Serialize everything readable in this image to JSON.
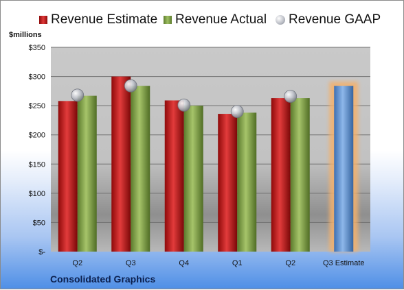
{
  "legend": {
    "estimate": "Revenue Estimate",
    "actual": "Revenue Actual",
    "gaap": "Revenue GAAP"
  },
  "y_unit": "$millions",
  "footer_title": "Consolidated Graphics",
  "chart_data": {
    "type": "bar",
    "categories": [
      "Q2",
      "Q3",
      "Q4",
      "Q1",
      "Q2",
      "Q3 Estimate"
    ],
    "series": [
      {
        "name": "Revenue Estimate",
        "values": [
          258,
          300,
          259,
          236,
          263,
          null
        ],
        "color": "#c41a1a"
      },
      {
        "name": "Revenue Actual",
        "values": [
          267,
          284,
          250,
          238,
          263,
          284
        ],
        "color": "#86a94a"
      },
      {
        "name": "Revenue GAAP",
        "values": [
          268,
          284,
          251,
          240,
          266,
          null
        ],
        "color": "#b9bcc4"
      }
    ],
    "highlight": {
      "category": "Q3 Estimate",
      "value": 284,
      "color": "#6f9fd8",
      "glow": "#f4b06a"
    },
    "ylim": [
      0,
      350
    ],
    "yticks": [
      0,
      50,
      100,
      150,
      200,
      250,
      300,
      350
    ],
    "ytick_labels": [
      "$-",
      "$50",
      "$100",
      "$150",
      "$200",
      "$250",
      "$300",
      "$350"
    ],
    "xlabel": "",
    "ylabel": "$millions",
    "grid": true,
    "legend_position": "top"
  }
}
